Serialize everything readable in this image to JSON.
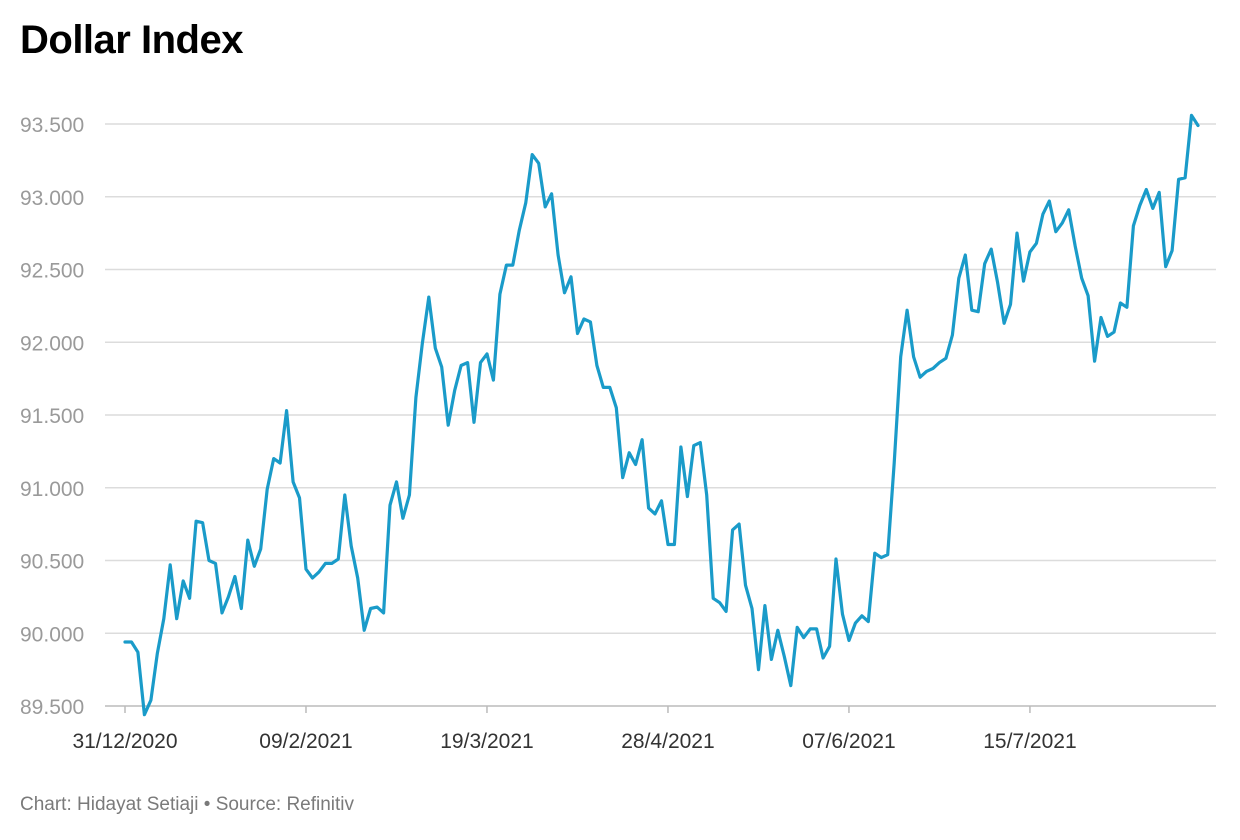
{
  "title": "Dollar Index",
  "footer": {
    "credit": "Chart: Hidayat Setiaji",
    "separator": "•",
    "source": "Source: Refinitiv"
  },
  "colors": {
    "line": "#1a9bc9",
    "grid": "#dcdcdc",
    "axis": "#bbbbbb"
  },
  "chart_data": {
    "type": "line",
    "title": "Dollar Index",
    "xlabel": "",
    "ylabel": "",
    "ylim": [
      89.5,
      93.5
    ],
    "grid": true,
    "y_ticks": [
      89.5,
      90.0,
      90.5,
      91.0,
      91.5,
      92.0,
      92.5,
      93.0,
      93.5
    ],
    "y_tick_labels": [
      "89.500",
      "90.000",
      "90.500",
      "91.000",
      "91.500",
      "92.000",
      "92.500",
      "93.000",
      "93.500"
    ],
    "x_tick_labels": [
      "31/12/2020",
      "09/2/2021",
      "19/3/2021",
      "28/4/2021",
      "07/6/2021",
      "15/7/2021"
    ],
    "x_tick_index": [
      0,
      28,
      56,
      84,
      112,
      140
    ],
    "series": [
      {
        "values": [
          89.94,
          89.94,
          89.87,
          89.44,
          89.54,
          89.86,
          90.1,
          90.47,
          90.1,
          90.36,
          90.24,
          90.77,
          90.76,
          90.5,
          90.48,
          90.14,
          90.25,
          90.39,
          90.17,
          90.64,
          90.46,
          90.58,
          90.99,
          91.2,
          91.17,
          91.53,
          91.04,
          90.93,
          90.44,
          90.38,
          90.42,
          90.48,
          90.48,
          90.51,
          90.95,
          90.6,
          90.38,
          90.02,
          90.17,
          90.18,
          90.14,
          90.88,
          91.04,
          90.79,
          90.95,
          91.62,
          91.99,
          92.31,
          91.96,
          91.83,
          91.43,
          91.67,
          91.84,
          91.86,
          91.45,
          91.86,
          91.92,
          91.74,
          92.33,
          92.53,
          92.53,
          92.77,
          92.96,
          93.29,
          93.23,
          92.93,
          93.02,
          92.6,
          92.34,
          92.45,
          92.06,
          92.16,
          92.14,
          91.84,
          91.69,
          91.69,
          91.55,
          91.07,
          91.24,
          91.16,
          91.33,
          90.86,
          90.82,
          90.91,
          90.61,
          90.61,
          91.28,
          90.94,
          91.29,
          91.31,
          90.95,
          90.24,
          90.21,
          90.15,
          90.71,
          90.75,
          90.33,
          90.17,
          89.75,
          90.19,
          89.82,
          90.02,
          89.84,
          89.64,
          90.04,
          89.97,
          90.03,
          90.03,
          89.83,
          89.91,
          90.51,
          90.13,
          89.95,
          90.07,
          90.12,
          90.08,
          90.55,
          90.52,
          90.54,
          91.17,
          91.9,
          92.22,
          91.9,
          91.76,
          91.8,
          91.82,
          91.86,
          91.89,
          92.05,
          92.44,
          92.6,
          92.22,
          92.21,
          92.54,
          92.64,
          92.41,
          92.13,
          92.26,
          92.75,
          92.42,
          92.62,
          92.68,
          92.88,
          92.97,
          92.76,
          92.82,
          92.91,
          92.66,
          92.44,
          92.32,
          91.87,
          92.17,
          92.04,
          92.07,
          92.27,
          92.24,
          92.8,
          92.94,
          93.05,
          92.92,
          93.03,
          92.52,
          92.63,
          93.12,
          93.13,
          93.56,
          93.49
        ]
      }
    ]
  }
}
